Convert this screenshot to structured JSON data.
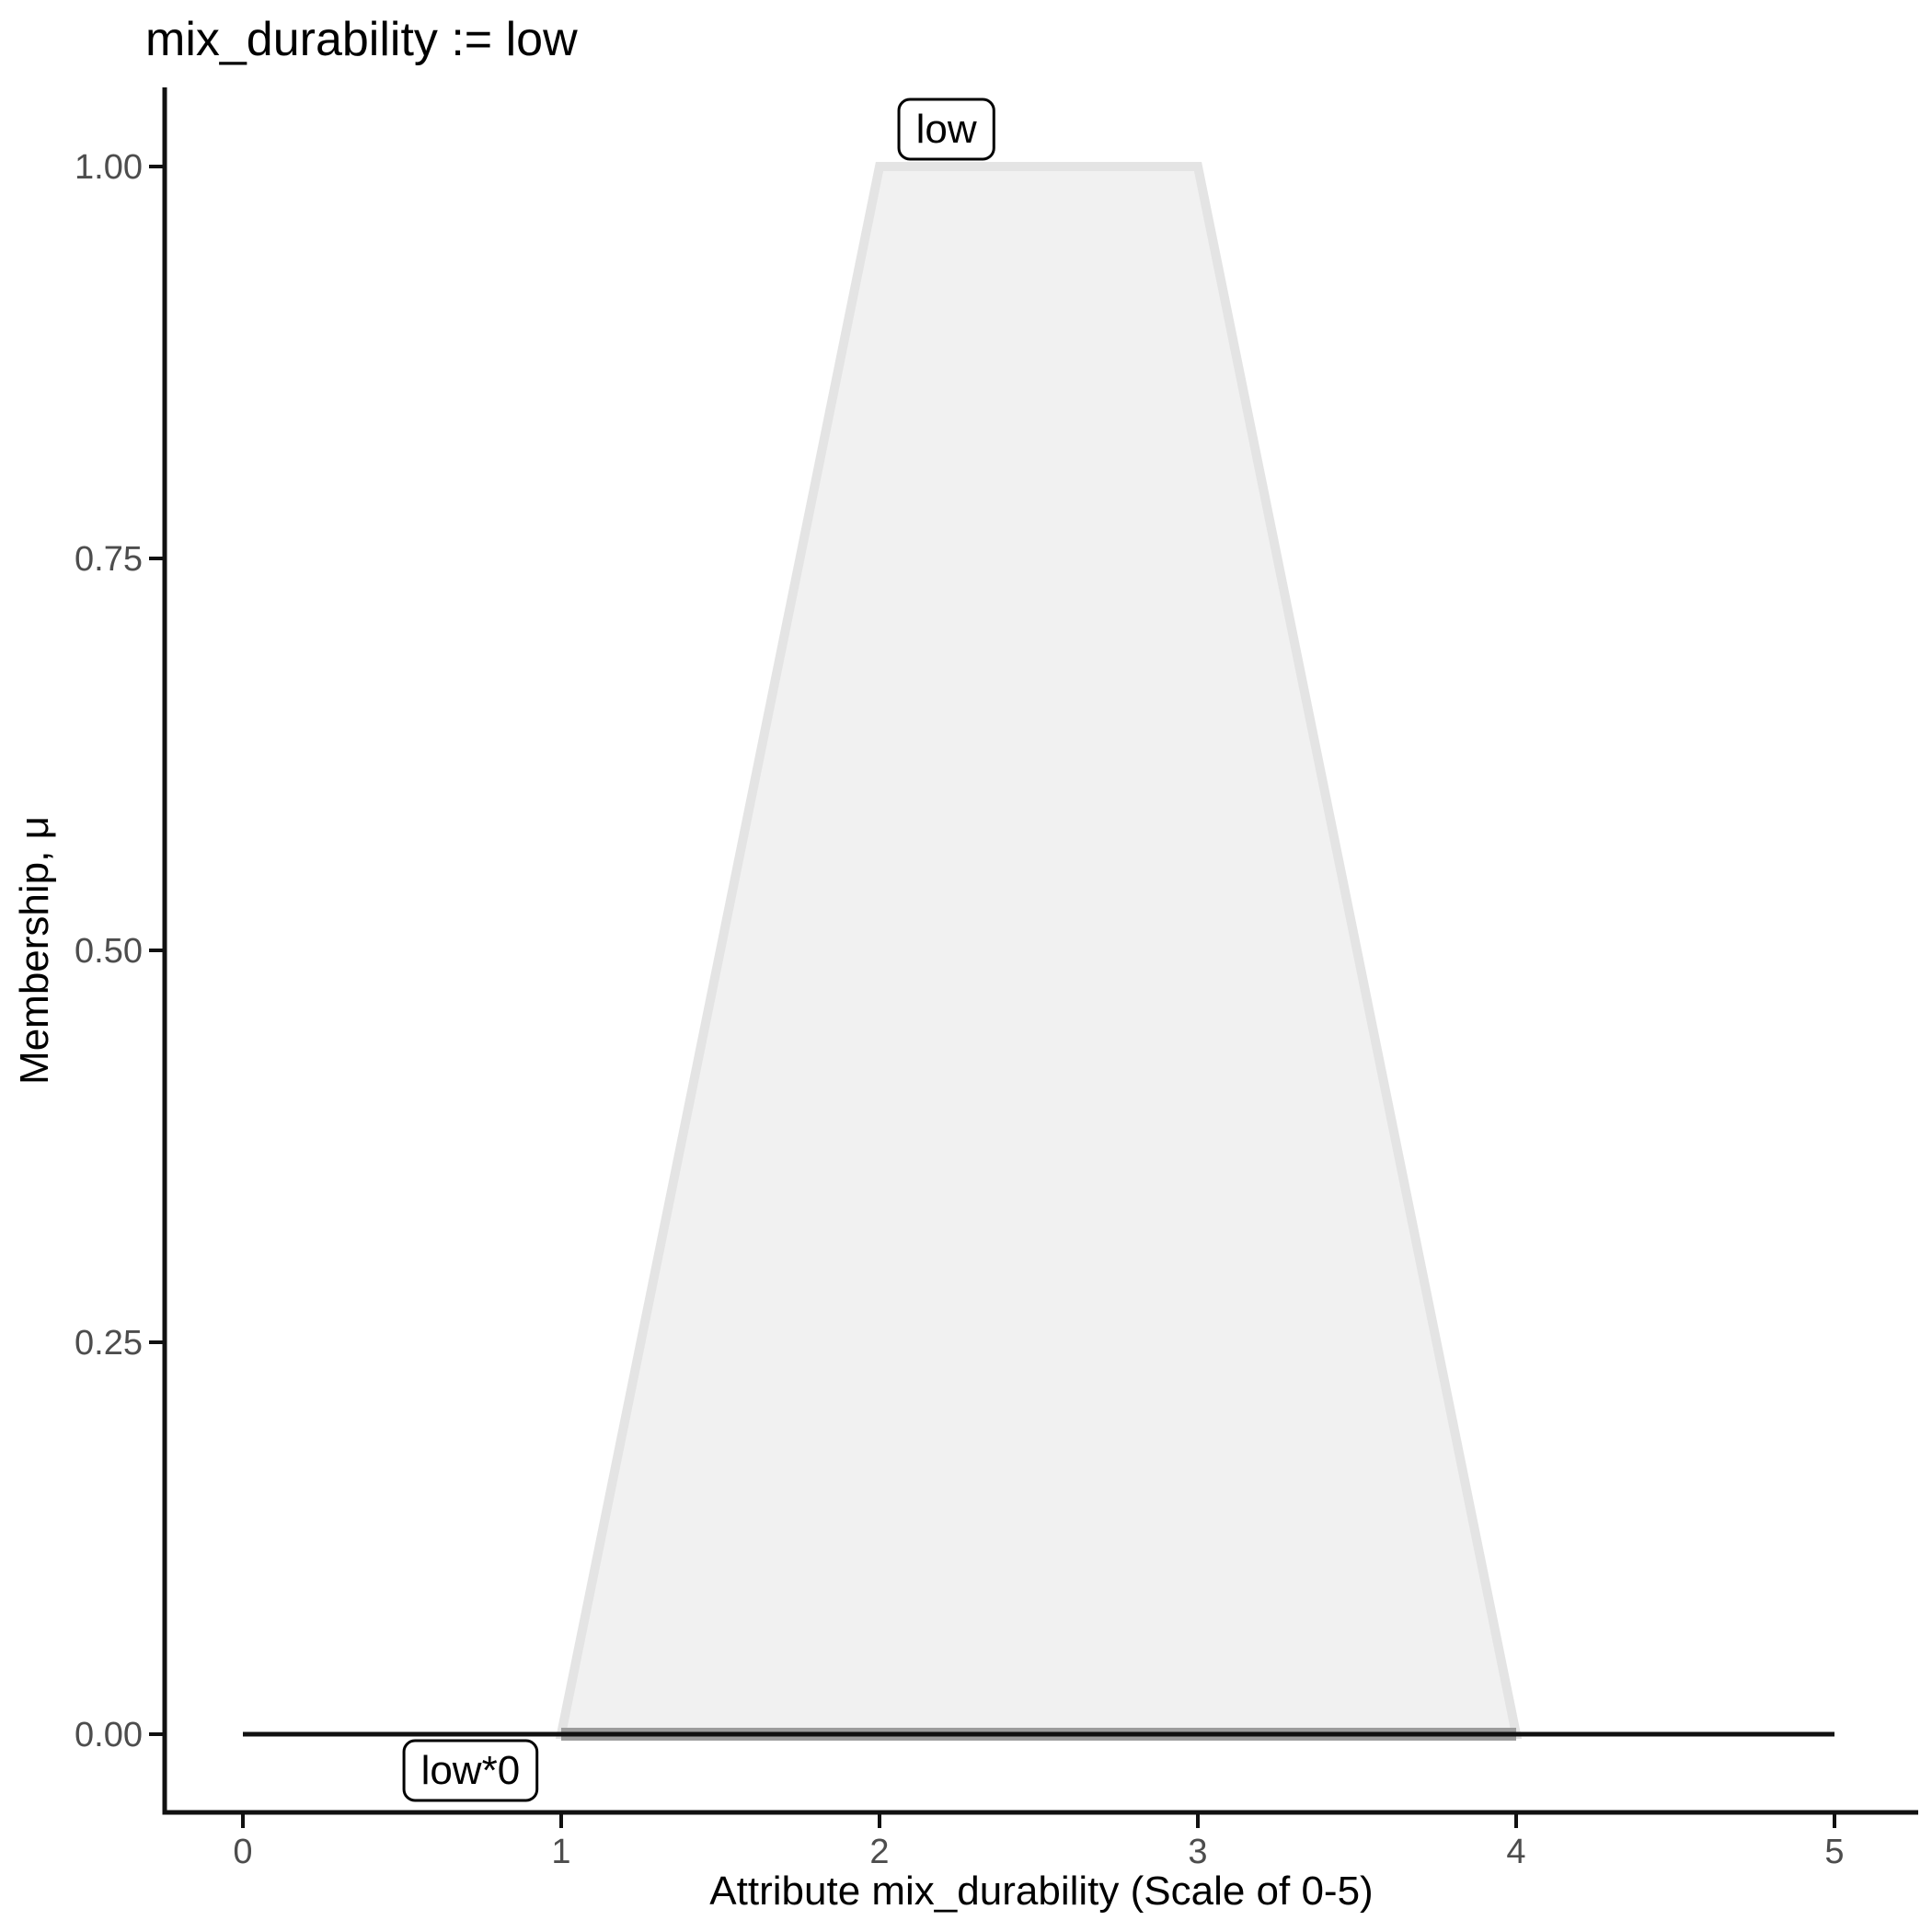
{
  "page": {
    "background": "#ffffff"
  },
  "chart_data": {
    "type": "area",
    "title": "mix_durability := low",
    "xlabel": "Attribute mix_durability (Scale of 0-5)",
    "ylabel": "Membership, μ",
    "xlim": [
      0,
      5
    ],
    "ylim": [
      0,
      1
    ],
    "grid": false,
    "legend": "none",
    "x_ticks": [
      {
        "v": 0,
        "label": "0"
      },
      {
        "v": 1,
        "label": "1"
      },
      {
        "v": 2,
        "label": "2"
      },
      {
        "v": 3,
        "label": "3"
      },
      {
        "v": 4,
        "label": "4"
      },
      {
        "v": 5,
        "label": "5"
      }
    ],
    "y_ticks": [
      {
        "v": 0.0,
        "label": "0.00"
      },
      {
        "v": 0.25,
        "label": "0.25"
      },
      {
        "v": 0.5,
        "label": "0.50"
      },
      {
        "v": 0.75,
        "label": "0.75"
      },
      {
        "v": 1.0,
        "label": "1.00"
      }
    ],
    "series": [
      {
        "name": "low",
        "kind": "membership-polygon",
        "points": [
          [
            1,
            0
          ],
          [
            2,
            1
          ],
          [
            3,
            1
          ],
          [
            4,
            0
          ]
        ],
        "fill": "#f1f1f1",
        "stroke": "#e4e4e4",
        "stroke_width": 10,
        "baseline_overlap_stroke": "#9c9c9c",
        "baseline_overlap_width": 14,
        "label": {
          "text": "low",
          "x": 2.21,
          "y": 1.0,
          "placement": "above"
        }
      },
      {
        "name": "low*0",
        "kind": "zero-line",
        "points": [
          [
            0,
            0
          ],
          [
            5,
            0
          ]
        ],
        "stroke": "#111111",
        "stroke_width": 5,
        "label": {
          "text": "low*0",
          "x": 0.715,
          "y": 0.0,
          "placement": "below"
        }
      }
    ],
    "colors": {
      "axis": "#111111",
      "tick_text": "#4d4d4d",
      "title_text": "#000000",
      "axis_title_text": "#000000",
      "label_box_fill": "#ffffff",
      "label_box_border": "#000000"
    }
  }
}
